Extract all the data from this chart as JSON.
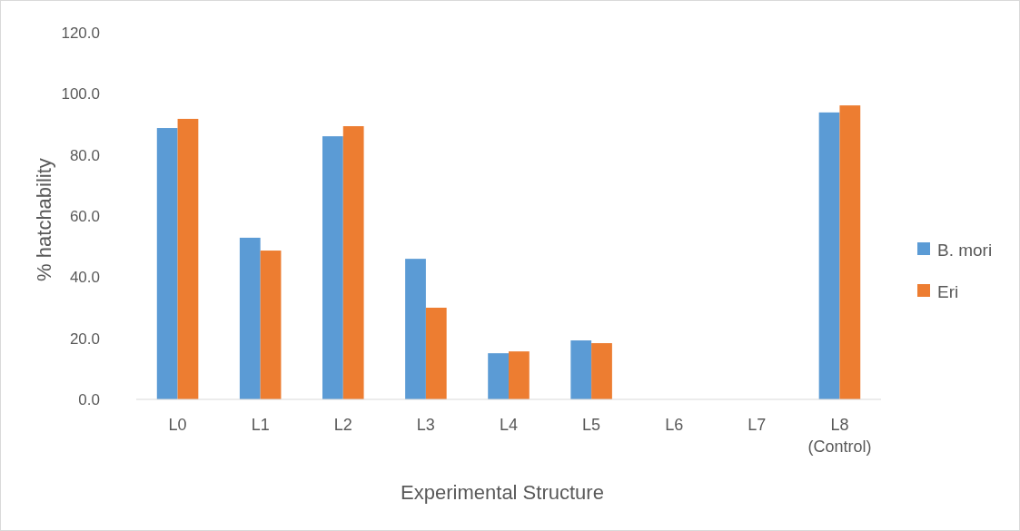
{
  "chart_data": {
    "type": "bar",
    "xlabel": "Experimental Structure",
    "ylabel": "% hatchability",
    "categories": [
      "L0",
      "L1",
      "L2",
      "L3",
      "L4",
      "L5",
      "L6",
      "L7",
      "L8 (Control)"
    ],
    "series": [
      {
        "name": "B. mori",
        "color": "#5b9bd5",
        "values": [
          88.8,
          52.9,
          86.1,
          46.0,
          15.1,
          19.3,
          0,
          0,
          93.9
        ]
      },
      {
        "name": "Eri",
        "color": "#ed7d31",
        "values": [
          91.8,
          48.7,
          89.4,
          30.0,
          15.7,
          18.4,
          0,
          0,
          96.2
        ]
      }
    ],
    "ylim": [
      0,
      120
    ],
    "yticks": [
      {
        "value": 0,
        "label": "0.0"
      },
      {
        "value": 20,
        "label": "20.0"
      },
      {
        "value": 40,
        "label": "40.0"
      },
      {
        "value": 60,
        "label": "60.0"
      },
      {
        "value": 80,
        "label": "80.0"
      },
      {
        "value": 100,
        "label": "100.0"
      },
      {
        "value": 120,
        "label": "120.0"
      }
    ],
    "legend": "right"
  }
}
